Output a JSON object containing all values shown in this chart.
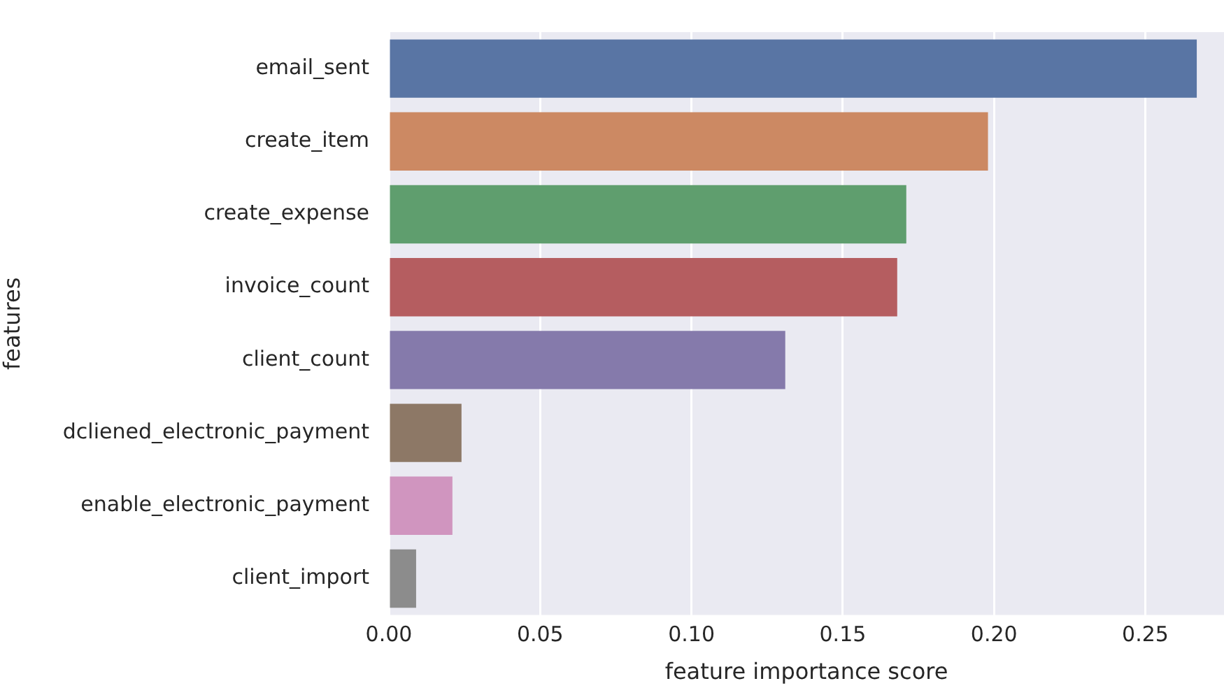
{
  "chart_data": {
    "type": "bar",
    "orientation": "horizontal",
    "xlabel": "feature importance score",
    "ylabel": "features",
    "categories": [
      "email_sent",
      "create_item",
      "create_expense",
      "invoice_count",
      "client_count",
      "dcliened_electronic_payment",
      "enable_electronic_payment",
      "client_import"
    ],
    "values": [
      0.267,
      0.198,
      0.171,
      0.168,
      0.131,
      0.024,
      0.021,
      0.009
    ],
    "colors": [
      "#5975a4",
      "#cc8963",
      "#5f9e6e",
      "#b55d60",
      "#857aab",
      "#8d7866",
      "#d095bf",
      "#8c8c8c"
    ],
    "xlim": [
      0,
      0.276
    ],
    "xticks": [
      {
        "value": 0,
        "label": "0.00"
      },
      {
        "value": 0.05,
        "label": "0.05"
      },
      {
        "value": 0.1,
        "label": "0.10"
      },
      {
        "value": 0.15,
        "label": "0.15"
      },
      {
        "value": 0.2,
        "label": "0.20"
      },
      {
        "value": 0.25,
        "label": "0.25"
      }
    ],
    "grid": "x",
    "legend": false
  }
}
